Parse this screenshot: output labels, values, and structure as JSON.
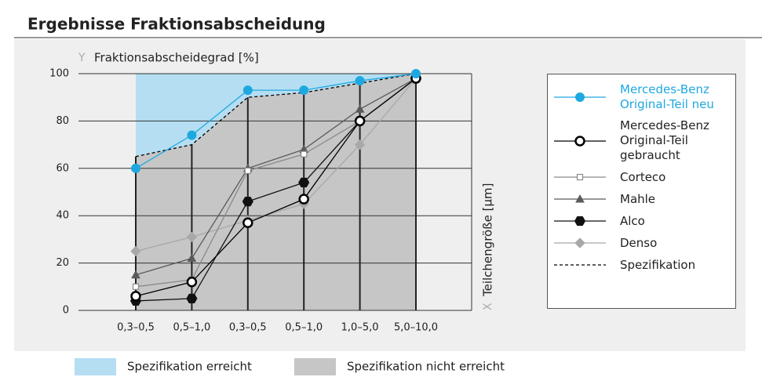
{
  "chart_data": {
    "type": "line",
    "title": "Ergebnisse Fraktionsabscheidung",
    "ylabel_prefix": "Y",
    "ylabel": "Fraktionsabscheidegrad [%]",
    "xlabel_prefix": "X",
    "xlabel": "Teilchengröße [µm]",
    "categories": [
      "0,3–0,5",
      "0,5–1,0",
      "0,3–0,5",
      "0,5–1,0",
      "1,0–5,0",
      "5,0–10,0"
    ],
    "ylim": [
      0,
      100
    ],
    "yticks": [
      0,
      20,
      40,
      60,
      80,
      100
    ],
    "grid": true,
    "series": [
      {
        "name": "Mercedes-Benz Original-Teil neu",
        "color": "#1fa8e0",
        "label_color": "#1fa8e0",
        "marker": "circle",
        "marker_fill": "#1fa8e0",
        "values": [
          60,
          74,
          93,
          93,
          97,
          100
        ]
      },
      {
        "name": "Mercedes-Benz Original-Teil gebraucht",
        "color": "#000000",
        "marker": "circle",
        "marker_fill": "#ffffff",
        "values": [
          6,
          12,
          37,
          47,
          80,
          98
        ]
      },
      {
        "name": "Corteco",
        "color": "#8a8a8a",
        "marker": "square",
        "marker_fill": "#ffffff",
        "values": [
          10,
          13,
          59,
          66,
          80,
          98
        ]
      },
      {
        "name": "Mahle",
        "color": "#5a5a5a",
        "marker": "triangle",
        "marker_fill": "#5a5a5a",
        "values": [
          15,
          22,
          60,
          68,
          85,
          98
        ]
      },
      {
        "name": "Alco",
        "color": "#111111",
        "marker": "hexagon",
        "marker_fill": "#111111",
        "values": [
          4,
          5,
          46,
          54,
          80,
          98
        ]
      },
      {
        "name": "Denso",
        "color": "#a8a8a8",
        "marker": "diamond",
        "marker_fill": "#a8a8a8",
        "values": [
          25,
          31,
          38,
          45,
          70,
          98
        ]
      },
      {
        "name": "Spezifikation",
        "color": "#000000",
        "marker": "none",
        "dash": true,
        "values": [
          65,
          70,
          90,
          92,
          96,
          100
        ]
      }
    ],
    "area_legend": [
      {
        "label": "Spezifikation erreicht",
        "color": "#b5def2"
      },
      {
        "label": "Spezifikation nicht erreicht",
        "color": "#c6c6c6"
      }
    ]
  }
}
